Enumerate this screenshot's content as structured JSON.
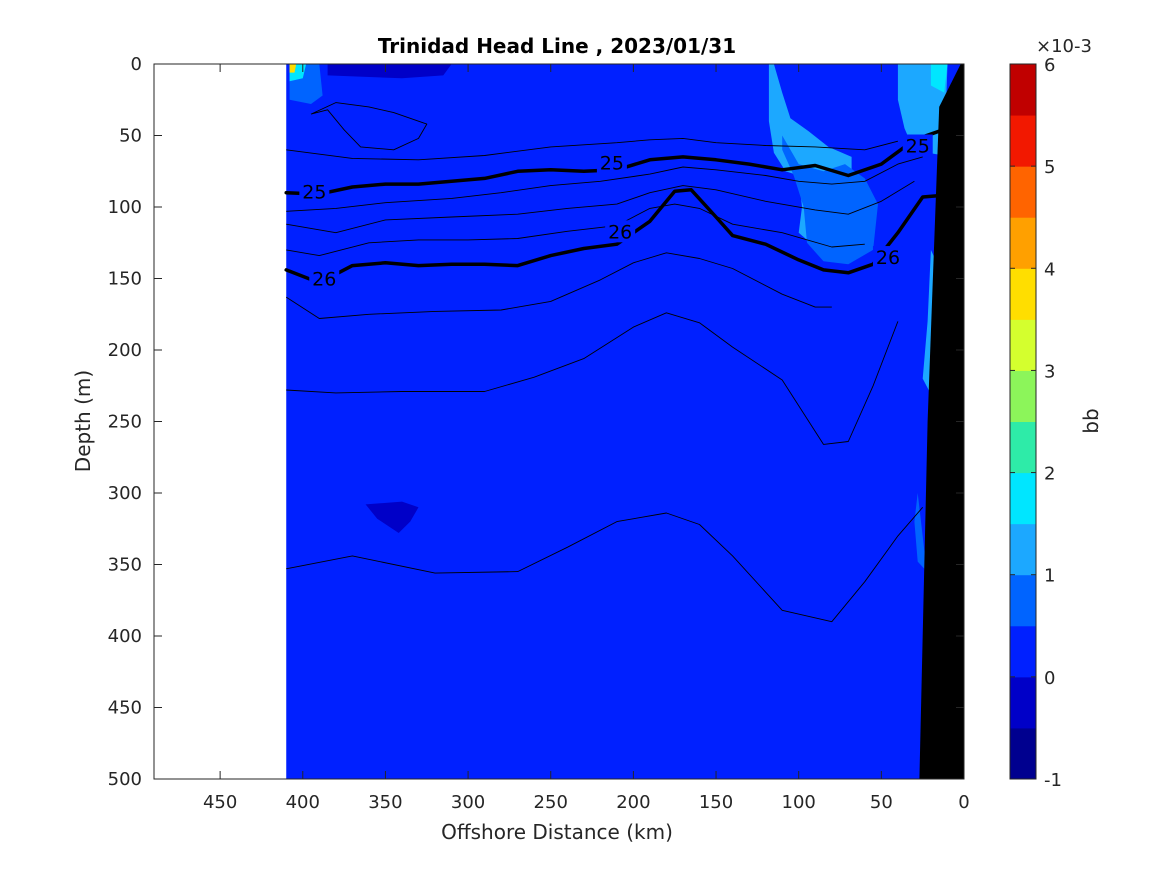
{
  "chart_data": {
    "type": "contour",
    "title": "Trinidad Head Line , 2023/01/31",
    "xlabel": "Offshore Distance (km)",
    "ylabel": "Depth (m)",
    "xlim": [
      490,
      0
    ],
    "ylim": [
      0,
      500
    ],
    "x_direction": "reversed",
    "y_direction": "reversed",
    "x_ticks": [
      450,
      400,
      350,
      300,
      250,
      200,
      150,
      100,
      50,
      0
    ],
    "y_ticks": [
      0,
      50,
      100,
      150,
      200,
      250,
      300,
      350,
      400,
      450,
      500
    ],
    "data_x_extent": [
      410,
      0
    ],
    "background_value_range": [
      0,
      0.5
    ],
    "colorbar": {
      "label": "bb",
      "multiplier": "×10-3",
      "range": [
        -1,
        6
      ],
      "ticks": [
        6,
        5,
        4,
        3,
        2,
        1,
        0,
        -1
      ],
      "levels": 14,
      "colors": [
        "#00008f",
        "#0000c8",
        "#0020ff",
        "#0064ff",
        "#1ca8ff",
        "#00e6ff",
        "#2eeba8",
        "#8cf55a",
        "#d4ff2e",
        "#ffde00",
        "#ffa000",
        "#ff6400",
        "#f21800",
        "#c00000"
      ]
    },
    "isopycnal_labels": [
      {
        "value": "25",
        "x": 393,
        "depth": 89
      },
      {
        "value": "25",
        "x": 213,
        "depth": 69
      },
      {
        "value": "25",
        "x": 28,
        "depth": 57
      },
      {
        "value": "26",
        "x": 387,
        "depth": 150
      },
      {
        "value": "26",
        "x": 208,
        "depth": 117
      },
      {
        "value": "26",
        "x": 46,
        "depth": 135
      }
    ],
    "isopycnals_bold": [
      {
        "name": "25",
        "points": [
          [
            410,
            90
          ],
          [
            390,
            91
          ],
          [
            370,
            86
          ],
          [
            350,
            84
          ],
          [
            330,
            84
          ],
          [
            310,
            82
          ],
          [
            290,
            80
          ],
          [
            270,
            75
          ],
          [
            250,
            74
          ],
          [
            230,
            75
          ],
          [
            210,
            74
          ],
          [
            190,
            67
          ],
          [
            170,
            65
          ],
          [
            150,
            67
          ],
          [
            130,
            70
          ],
          [
            110,
            74
          ],
          [
            90,
            71
          ],
          [
            70,
            78
          ],
          [
            50,
            70
          ],
          [
            30,
            53
          ],
          [
            15,
            47
          ],
          [
            10,
            46
          ]
        ]
      },
      {
        "name": "26",
        "points": [
          [
            410,
            144
          ],
          [
            390,
            153
          ],
          [
            370,
            141
          ],
          [
            350,
            139
          ],
          [
            330,
            141
          ],
          [
            310,
            140
          ],
          [
            290,
            140
          ],
          [
            270,
            141
          ],
          [
            250,
            134
          ],
          [
            230,
            129
          ],
          [
            210,
            126
          ],
          [
            190,
            110
          ],
          [
            175,
            89
          ],
          [
            165,
            88
          ],
          [
            150,
            107
          ],
          [
            140,
            120
          ],
          [
            120,
            126
          ],
          [
            100,
            137
          ],
          [
            85,
            144
          ],
          [
            70,
            146
          ],
          [
            55,
            140
          ],
          [
            40,
            118
          ],
          [
            25,
            93
          ],
          [
            15,
            92
          ],
          [
            5,
            100
          ]
        ]
      }
    ],
    "isopycnals_thin": [
      {
        "points": [
          [
            410,
            60
          ],
          [
            370,
            66
          ],
          [
            330,
            67
          ],
          [
            290,
            64
          ],
          [
            250,
            58
          ],
          [
            210,
            55
          ],
          [
            190,
            53
          ],
          [
            170,
            52
          ],
          [
            150,
            55
          ],
          [
            120,
            57
          ],
          [
            90,
            58
          ],
          [
            60,
            60
          ],
          [
            40,
            54
          ]
        ]
      },
      {
        "points": [
          [
            410,
            103
          ],
          [
            380,
            101
          ],
          [
            350,
            97
          ],
          [
            310,
            94
          ],
          [
            280,
            90
          ],
          [
            250,
            85
          ],
          [
            220,
            82
          ],
          [
            190,
            77
          ],
          [
            170,
            72
          ],
          [
            150,
            74
          ],
          [
            120,
            78
          ],
          [
            100,
            82
          ],
          [
            80,
            84
          ],
          [
            60,
            82
          ],
          [
            40,
            70
          ],
          [
            25,
            65
          ]
        ]
      },
      {
        "points": [
          [
            410,
            112
          ],
          [
            380,
            118
          ],
          [
            350,
            109
          ],
          [
            310,
            107
          ],
          [
            270,
            105
          ],
          [
            240,
            101
          ],
          [
            210,
            98
          ],
          [
            190,
            90
          ],
          [
            170,
            85
          ],
          [
            150,
            88
          ],
          [
            120,
            96
          ],
          [
            90,
            102
          ],
          [
            70,
            105
          ],
          [
            50,
            96
          ],
          [
            30,
            82
          ]
        ]
      },
      {
        "points": [
          [
            410,
            130
          ],
          [
            390,
            134
          ],
          [
            360,
            125
          ],
          [
            330,
            123
          ],
          [
            300,
            123
          ],
          [
            270,
            122
          ],
          [
            240,
            117
          ],
          [
            210,
            113
          ],
          [
            190,
            101
          ],
          [
            175,
            98
          ],
          [
            160,
            101
          ],
          [
            140,
            112
          ],
          [
            110,
            118
          ],
          [
            80,
            128
          ],
          [
            60,
            126
          ]
        ]
      },
      {
        "points": [
          [
            410,
            163
          ],
          [
            390,
            178
          ],
          [
            360,
            175
          ],
          [
            320,
            173
          ],
          [
            280,
            172
          ],
          [
            250,
            166
          ],
          [
            220,
            151
          ],
          [
            200,
            139
          ],
          [
            180,
            132
          ],
          [
            160,
            136
          ],
          [
            140,
            143
          ],
          [
            110,
            161
          ],
          [
            90,
            170
          ],
          [
            80,
            170
          ]
        ]
      },
      {
        "points": [
          [
            410,
            228
          ],
          [
            380,
            230
          ],
          [
            340,
            229
          ],
          [
            290,
            229
          ],
          [
            260,
            219
          ],
          [
            230,
            206
          ],
          [
            200,
            184
          ],
          [
            180,
            174
          ],
          [
            160,
            181
          ],
          [
            140,
            198
          ],
          [
            110,
            221
          ],
          [
            85,
            266
          ],
          [
            70,
            264
          ],
          [
            55,
            225
          ],
          [
            40,
            180
          ]
        ]
      },
      {
        "points": [
          [
            410,
            353
          ],
          [
            370,
            344
          ],
          [
            320,
            356
          ],
          [
            270,
            355
          ],
          [
            240,
            338
          ],
          [
            210,
            320
          ],
          [
            180,
            314
          ],
          [
            160,
            322
          ],
          [
            140,
            344
          ],
          [
            110,
            382
          ],
          [
            80,
            390
          ],
          [
            60,
            362
          ],
          [
            40,
            330
          ],
          [
            25,
            310
          ]
        ]
      },
      {
        "points": [
          [
            395,
            35
          ],
          [
            385,
            32
          ],
          [
            375,
            46
          ],
          [
            365,
            58
          ],
          [
            345,
            60
          ],
          [
            330,
            52
          ],
          [
            325,
            42
          ],
          [
            345,
            34
          ],
          [
            360,
            30
          ],
          [
            380,
            27
          ],
          [
            395,
            35
          ]
        ]
      }
    ],
    "anomaly_patches": [
      {
        "color": "#1ca8ff",
        "points": [
          [
            118,
            0
          ],
          [
            118,
            40
          ],
          [
            115,
            62
          ],
          [
            108,
            75
          ],
          [
            100,
            78
          ],
          [
            98,
            100
          ],
          [
            100,
            118
          ],
          [
            94,
            124
          ],
          [
            78,
            128
          ],
          [
            68,
            110
          ],
          [
            68,
            65
          ],
          [
            82,
            58
          ],
          [
            94,
            47
          ],
          [
            105,
            38
          ],
          [
            110,
            20
          ],
          [
            115,
            0
          ]
        ]
      },
      {
        "color": "#1ca8ff",
        "points": [
          [
            40,
            0
          ],
          [
            40,
            25
          ],
          [
            36,
            45
          ],
          [
            33,
            53
          ],
          [
            22,
            62
          ],
          [
            12,
            64
          ],
          [
            10,
            0
          ]
        ]
      },
      {
        "color": "#1ca8ff",
        "points": [
          [
            20,
            130
          ],
          [
            12,
            150
          ],
          [
            10,
            200
          ],
          [
            16,
            240
          ],
          [
            25,
            220
          ],
          [
            22,
            180
          ]
        ]
      },
      {
        "color": "#0064ff",
        "points": [
          [
            110,
            50
          ],
          [
            100,
            70
          ],
          [
            85,
            75
          ],
          [
            72,
            70
          ],
          [
            60,
            80
          ],
          [
            52,
            98
          ],
          [
            55,
            130
          ],
          [
            70,
            140
          ],
          [
            85,
            138
          ],
          [
            95,
            125
          ],
          [
            97,
            100
          ],
          [
            103,
            78
          ],
          [
            110,
            60
          ]
        ]
      },
      {
        "color": "#00e6ff",
        "points": [
          [
            20,
            0
          ],
          [
            20,
            15
          ],
          [
            12,
            20
          ],
          [
            10,
            0
          ]
        ]
      },
      {
        "color": "#0064ff",
        "points": [
          [
            408,
            0
          ],
          [
            408,
            25
          ],
          [
            395,
            28
          ],
          [
            388,
            22
          ],
          [
            390,
            0
          ]
        ]
      },
      {
        "color": "#00e6ff",
        "points": [
          [
            408,
            0
          ],
          [
            408,
            12
          ],
          [
            400,
            10
          ],
          [
            398,
            0
          ]
        ]
      },
      {
        "color": "#ffde00",
        "points": [
          [
            408,
            0
          ],
          [
            408,
            6
          ],
          [
            405,
            6
          ],
          [
            404,
            0
          ]
        ]
      },
      {
        "color": "#0000c8",
        "points": [
          [
            385,
            0
          ],
          [
            385,
            8
          ],
          [
            340,
            10
          ],
          [
            315,
            8
          ],
          [
            310,
            0
          ]
        ]
      },
      {
        "color": "#0000c8",
        "points": [
          [
            362,
            308
          ],
          [
            355,
            318
          ],
          [
            342,
            328
          ],
          [
            335,
            320
          ],
          [
            330,
            310
          ],
          [
            340,
            306
          ]
        ]
      },
      {
        "color": "#0064ff",
        "points": [
          [
            28,
            300
          ],
          [
            24,
            340
          ],
          [
            20,
            358
          ],
          [
            28,
            348
          ],
          [
            30,
            320
          ]
        ]
      }
    ],
    "bathymetry_polygon": [
      [
        0,
        0
      ],
      [
        0,
        500
      ],
      [
        27,
        500
      ],
      [
        22,
        250
      ],
      [
        15,
        30
      ],
      [
        2,
        0
      ]
    ]
  }
}
